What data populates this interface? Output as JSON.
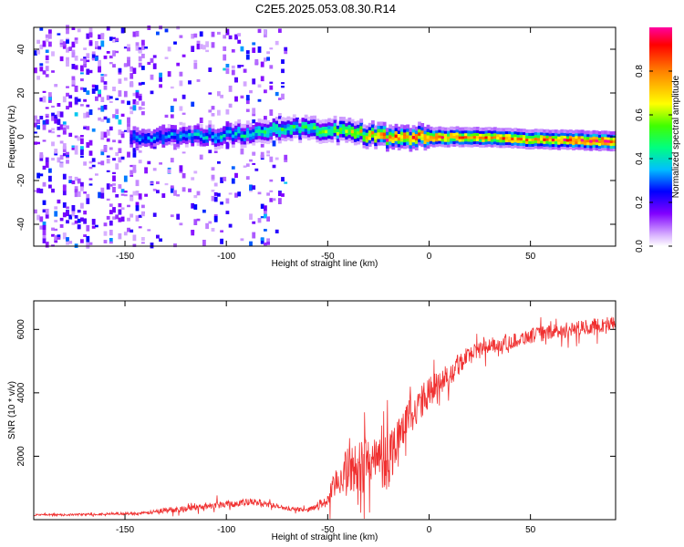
{
  "title": "C2E5.2025.053.08.30.R14",
  "colors": {
    "frame": "#000000",
    "snr_line": "#f03030",
    "colormap": [
      "#ffffff",
      "#d9b3ff",
      "#8000ff",
      "#0000ff",
      "#00bfff",
      "#00ff80",
      "#40ff00",
      "#ffff00",
      "#ff8000",
      "#ff0000",
      "#ff00a0"
    ]
  },
  "chart_data": [
    {
      "type": "heatmap",
      "name": "spectrogram",
      "xlabel": "Height of straight line (km)",
      "ylabel": "Frequency (Hz)",
      "xlim": [
        -195,
        92
      ],
      "ylim": [
        -50,
        50
      ],
      "xticks": [
        -150,
        -100,
        -50,
        0,
        50
      ],
      "yticks": [
        -40,
        -20,
        0,
        20,
        40
      ],
      "colorbar": {
        "label": "Normalized spectral amplitude",
        "range": [
          0,
          1
        ],
        "ticks": [
          0.0,
          0.2,
          0.4,
          0.6,
          0.8
        ]
      },
      "ridge": {
        "x": [
          -145,
          -120,
          -100,
          -80,
          -60,
          -45,
          -30,
          -20,
          0,
          20,
          50,
          92
        ],
        "center_hz": [
          0,
          0,
          1,
          3,
          4,
          3,
          1,
          0,
          0,
          0,
          -1,
          -2
        ],
        "peak_amplitude": [
          0.3,
          0.35,
          0.4,
          0.45,
          0.5,
          0.55,
          0.7,
          0.9,
          0.85,
          0.75,
          0.8,
          0.95
        ]
      },
      "noise_region": {
        "x_start": -195,
        "x_end": -70,
        "mean_amplitude": 0.15
      }
    },
    {
      "type": "line",
      "name": "snr",
      "xlabel": "Height of straight line (km)",
      "ylabel": "SNR (10 * v/v)",
      "xlim": [
        -195,
        92
      ],
      "ylim": [
        0,
        6900
      ],
      "xticks": [
        -150,
        -100,
        -50,
        0,
        50
      ],
      "yticks": [
        2000,
        4000,
        6000
      ],
      "series": [
        {
          "x": [
            -195,
            -180,
            -160,
            -140,
            -130,
            -120,
            -100,
            -85,
            -70,
            -60,
            -55,
            -50,
            -45,
            -40,
            -35,
            -30,
            -25,
            -20,
            -15,
            -10,
            -5,
            0,
            5,
            10,
            15,
            20,
            30,
            40,
            50,
            60,
            70,
            80,
            92
          ],
          "y": [
            150,
            150,
            180,
            200,
            300,
            350,
            500,
            550,
            350,
            300,
            450,
            600,
            1300,
            1500,
            1700,
            1800,
            1800,
            1900,
            2700,
            3300,
            3600,
            4000,
            4300,
            4600,
            5000,
            5200,
            5500,
            5600,
            5800,
            5900,
            6000,
            6100,
            6200
          ],
          "variability": [
            50,
            50,
            60,
            80,
            150,
            150,
            200,
            200,
            100,
            100,
            200,
            400,
            900,
            1300,
            1400,
            1500,
            1500,
            1600,
            1100,
            900,
            900,
            900,
            700,
            700,
            600,
            500,
            400,
            400,
            400,
            400,
            400,
            400,
            400
          ]
        }
      ]
    }
  ]
}
